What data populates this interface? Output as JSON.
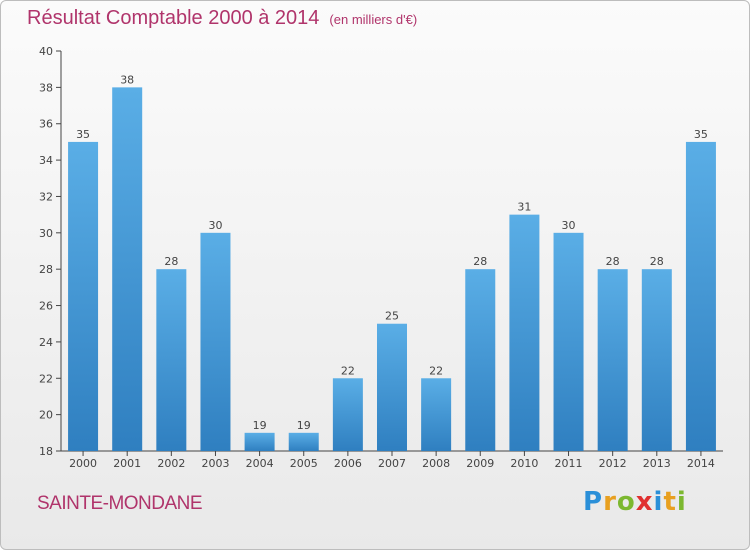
{
  "chart_data": {
    "type": "bar",
    "title": "Résultat Comptable 2000 à 2014",
    "subtitle": "(en milliers d'€)",
    "xlabel": "",
    "ylabel": "",
    "categories": [
      "2000",
      "2001",
      "2002",
      "2003",
      "2004",
      "2005",
      "2006",
      "2007",
      "2008",
      "2009",
      "2010",
      "2011",
      "2012",
      "2013",
      "2014"
    ],
    "values": [
      35,
      38,
      28,
      30,
      19,
      19,
      22,
      25,
      22,
      28,
      31,
      30,
      28,
      28,
      35
    ],
    "ylim": [
      18,
      40
    ],
    "yticks": [
      18,
      20,
      22,
      24,
      26,
      28,
      30,
      32,
      34,
      36,
      38,
      40
    ],
    "grid": false,
    "legend": "none",
    "bar_color_top": "#5aaee6",
    "bar_color_bottom": "#2f7fc0"
  },
  "location": "SAINTE-MONDANE",
  "logo": {
    "letters": [
      "P",
      "r",
      "o",
      "x",
      "i",
      "t",
      "i"
    ],
    "colors": [
      "#2a8fd8",
      "#e8a020",
      "#7cb830",
      "#e03030",
      "#2a8fd8",
      "#e8a020",
      "#7cb830"
    ]
  },
  "colors": {
    "title": "#b0346b",
    "axis": "#444444"
  }
}
